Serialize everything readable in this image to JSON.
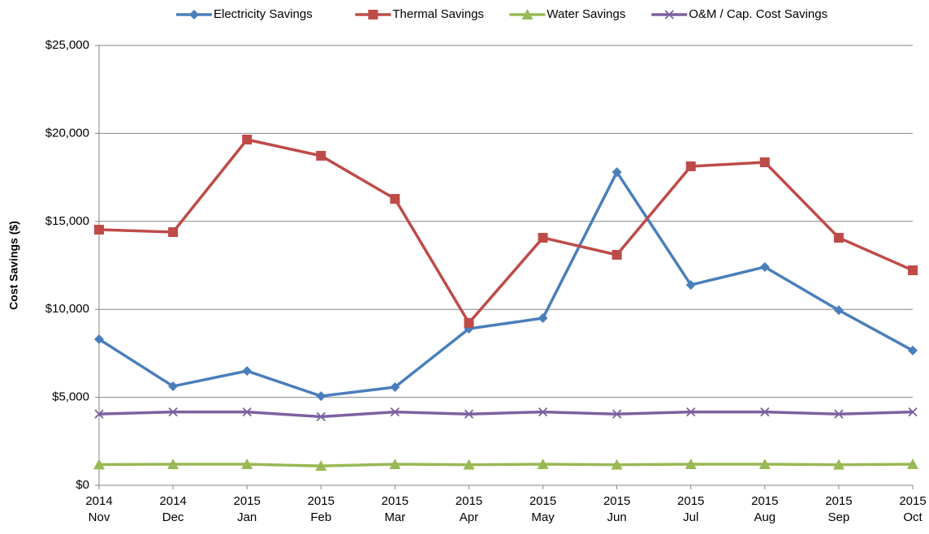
{
  "chart_data": {
    "type": "line",
    "y_label": "Cost Savings ($)",
    "categories": [
      "2014 Nov",
      "2014 Dec",
      "2015 Jan",
      "2015 Feb",
      "2015 Mar",
      "2015 Apr",
      "2015 May",
      "2015 Jun",
      "2015 Jul",
      "2015 Aug",
      "2015 Sep",
      "2015 Oct"
    ],
    "series": [
      {
        "name": "Electricity Savings",
        "color": "#4a7ebb",
        "marker": "diamond",
        "values": [
          8300,
          5630,
          6500,
          5070,
          5580,
          8900,
          9500,
          17800,
          11390,
          12410,
          9950,
          7660
        ]
      },
      {
        "name": "Thermal Savings",
        "color": "#be4b48",
        "marker": "square",
        "values": [
          14530,
          14390,
          19650,
          18730,
          16280,
          9230,
          14070,
          13100,
          18130,
          18360,
          14070,
          12220
        ]
      },
      {
        "name": "Water Savings",
        "color": "#98b954",
        "marker": "triangle",
        "values": [
          1180,
          1200,
          1200,
          1100,
          1200,
          1170,
          1200,
          1170,
          1200,
          1200,
          1170,
          1200
        ]
      },
      {
        "name": "O&M / Cap. Cost Savings",
        "color": "#7d60a0",
        "marker": "x",
        "values": [
          4050,
          4170,
          4170,
          3900,
          4170,
          4050,
          4170,
          4050,
          4170,
          4170,
          4050,
          4170
        ]
      }
    ],
    "ylim": [
      0,
      25000
    ],
    "yticks": [
      {
        "value": 0,
        "label": "$0"
      },
      {
        "value": 5000,
        "label": "$5,000"
      },
      {
        "value": 10000,
        "label": "$10,000"
      },
      {
        "value": 15000,
        "label": "$15,000"
      },
      {
        "value": 20000,
        "label": "$20,000"
      },
      {
        "value": 25000,
        "label": "$25,000"
      }
    ],
    "grid": true,
    "legend": "top"
  }
}
